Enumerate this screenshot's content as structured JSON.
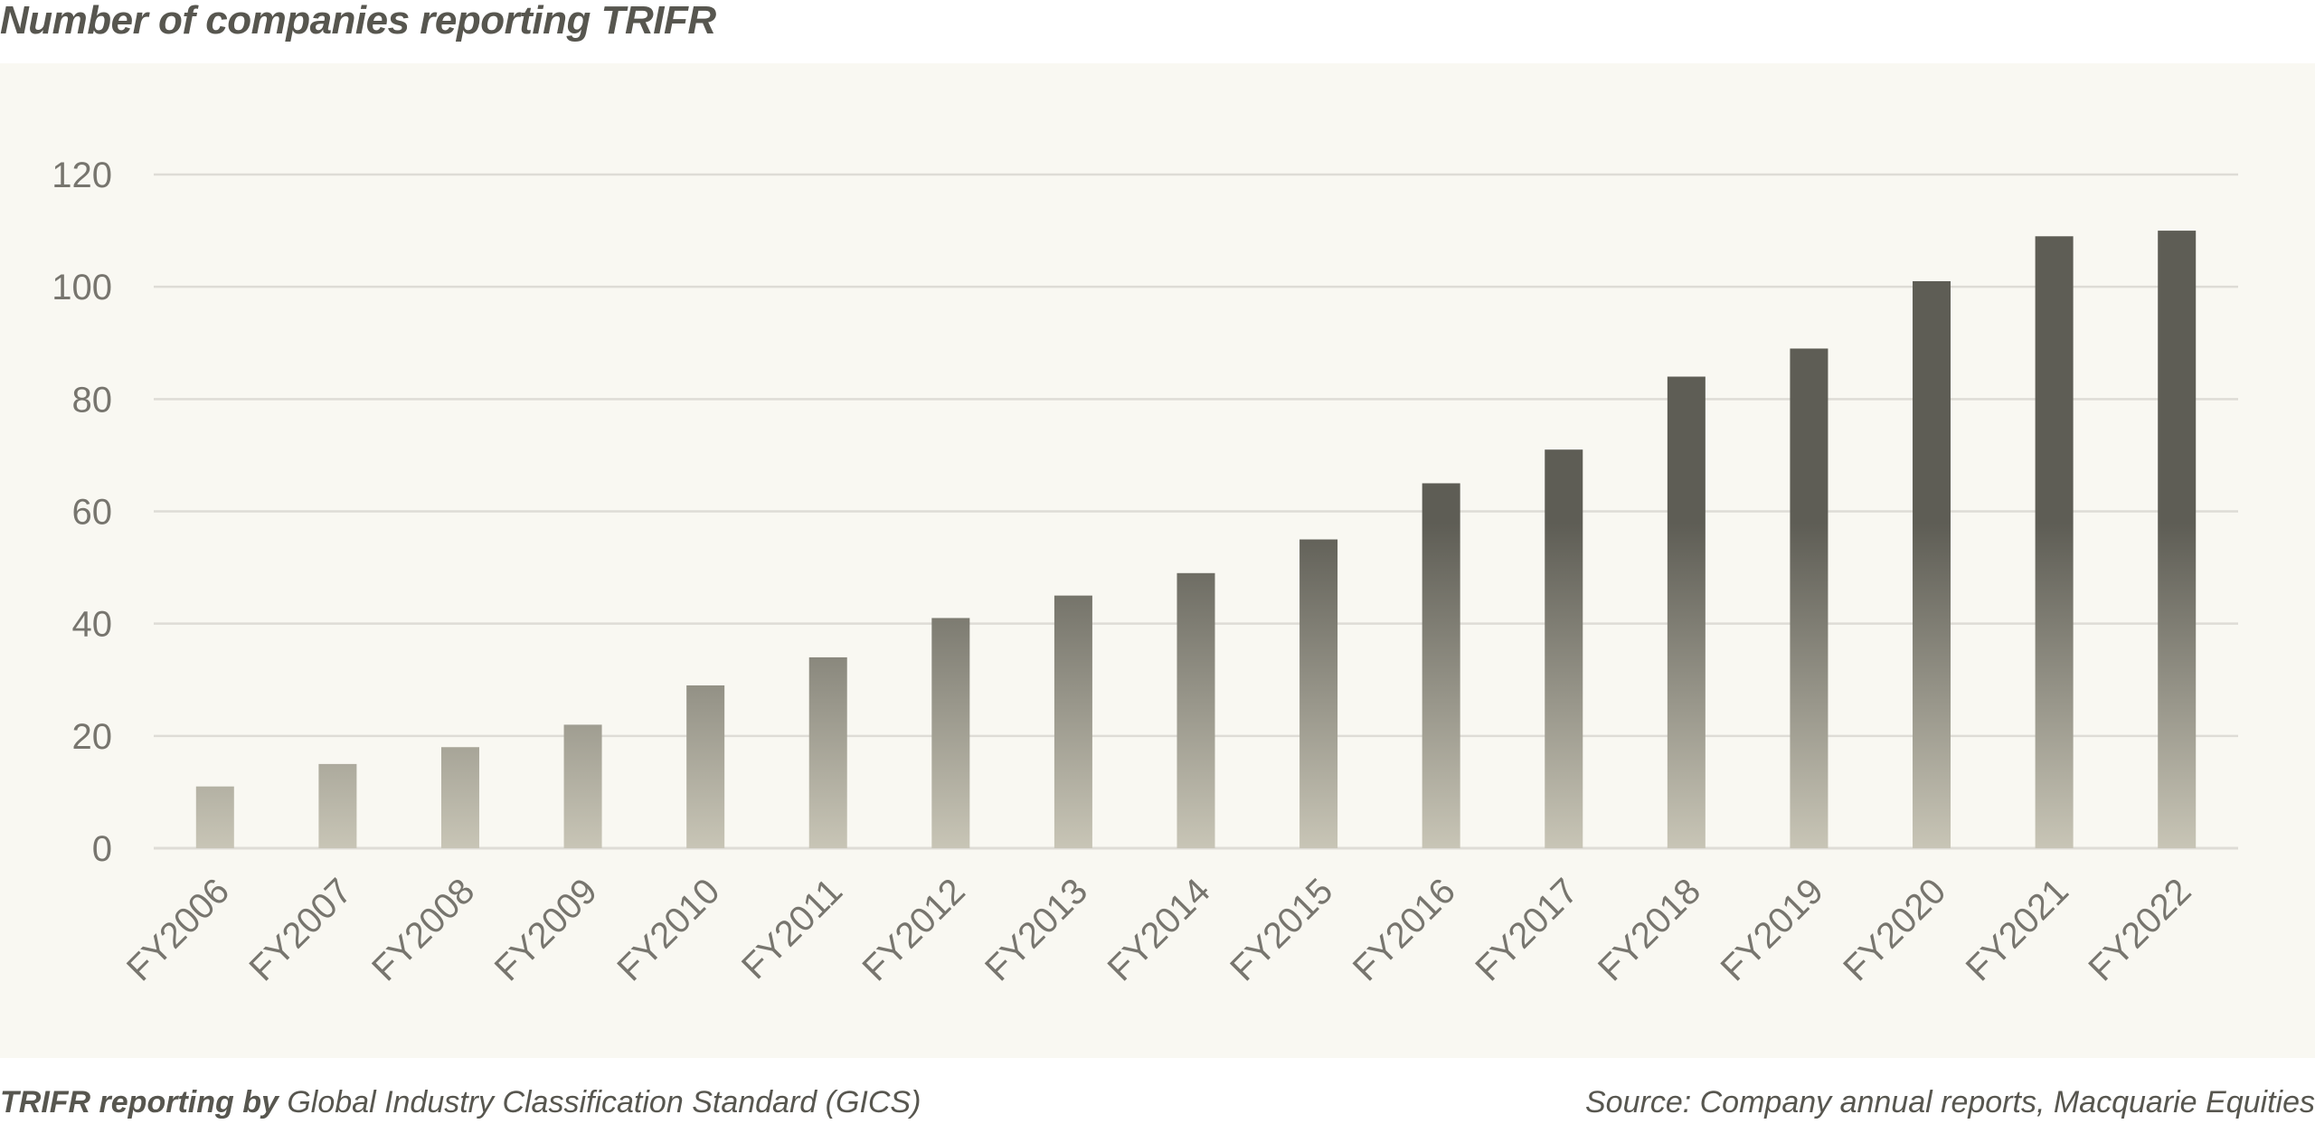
{
  "chart_data": {
    "type": "bar",
    "title": "Number of companies reporting TRIFR",
    "xlabel": "",
    "ylabel": "",
    "categories": [
      "FY2006",
      "FY2007",
      "FY2008",
      "FY2009",
      "FY2010",
      "FY2011",
      "FY2012",
      "FY2013",
      "FY2014",
      "FY2015",
      "FY2016",
      "FY2017",
      "FY2018",
      "FY2019",
      "FY2020",
      "FY2021",
      "FY2022"
    ],
    "values": [
      11,
      15,
      18,
      22,
      29,
      34,
      41,
      45,
      49,
      55,
      65,
      71,
      84,
      89,
      101,
      109,
      110
    ],
    "yticks": [
      "0",
      "20",
      "40",
      "60",
      "80",
      "100",
      "120"
    ],
    "ylim": [
      0,
      120
    ],
    "grid": true,
    "legend": "none",
    "colors": {
      "bar_top": "#5e5d55",
      "bar_bottom": "#c8c5b6",
      "grid": "#dedcd6",
      "tick_text": "#77756e",
      "panel_bg": "#f9f8f2"
    }
  },
  "footer": {
    "left_bold": "TRIFR reporting by",
    "left_rest": " Global Industry Classification Standard (GICS)",
    "source": "Source: Company annual reports, Macquarie Equities"
  }
}
